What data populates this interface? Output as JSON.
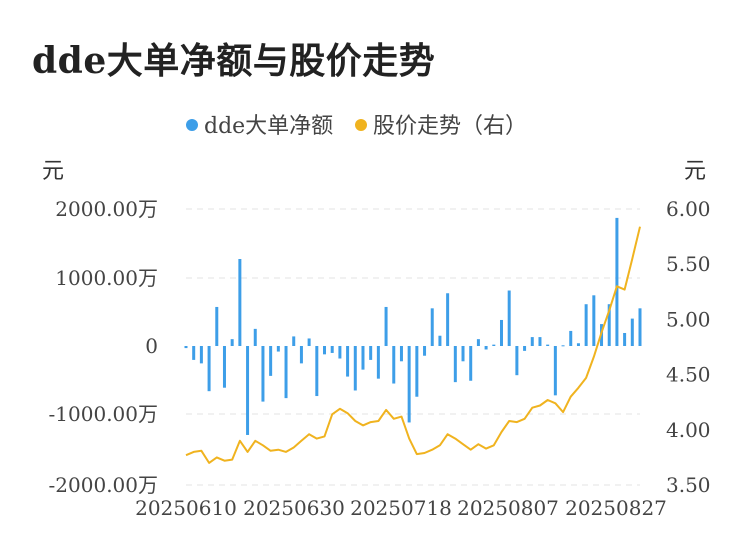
{
  "title": "dde大单净额与股价走势",
  "chart_data": {
    "type": "bar+line",
    "legend": [
      {
        "label": "dde大单净额",
        "color": "#3d9ee8"
      },
      {
        "label": "股价走势（右）",
        "color": "#f0b31f"
      }
    ],
    "left_unit": "元",
    "right_unit": "元",
    "left_ticks": [
      "2000.00万",
      "1000.00万",
      "0",
      "-1000.00万",
      "-2000.00万"
    ],
    "right_ticks": [
      "6.00",
      "5.50",
      "5.00",
      "4.50",
      "4.00",
      "3.50"
    ],
    "left_range": [
      -2000,
      2000
    ],
    "right_range": [
      3.5,
      6.0
    ],
    "x_ticks": [
      "20250610",
      "20250630",
      "20250718",
      "20250807",
      "20250827"
    ],
    "grid": true,
    "legend_position": "top-center",
    "series": [
      {
        "name": "dde大单净额",
        "type": "bar",
        "axis": "left",
        "values": [
          -30,
          -200,
          -250,
          -650,
          570,
          -600,
          100,
          1270,
          -1280,
          250,
          -800,
          -430,
          -80,
          -750,
          140,
          -250,
          110,
          -720,
          -120,
          -100,
          -180,
          -440,
          -640,
          -340,
          -200,
          -470,
          570,
          -540,
          -220,
          -1100,
          -730,
          -140,
          550,
          150,
          770,
          -520,
          -220,
          -500,
          100,
          -50,
          20,
          380,
          810,
          -420,
          -70,
          130,
          130,
          20,
          -710,
          10,
          220,
          40,
          610,
          740,
          320,
          610,
          1870,
          190,
          400,
          550
        ]
      },
      {
        "name": "股价走势（右）",
        "type": "line",
        "axis": "right",
        "values": [
          3.77,
          3.8,
          3.81,
          3.7,
          3.75,
          3.72,
          3.73,
          3.9,
          3.8,
          3.9,
          3.86,
          3.81,
          3.82,
          3.8,
          3.84,
          3.9,
          3.96,
          3.92,
          3.94,
          4.14,
          4.19,
          4.15,
          4.08,
          4.04,
          4.07,
          4.08,
          4.18,
          4.1,
          4.12,
          3.92,
          3.78,
          3.79,
          3.82,
          3.86,
          3.96,
          3.92,
          3.87,
          3.82,
          3.87,
          3.83,
          3.86,
          3.98,
          4.08,
          4.07,
          4.1,
          4.2,
          4.22,
          4.27,
          4.24,
          4.16,
          4.3,
          4.38,
          4.47,
          4.66,
          4.88,
          5.08,
          5.3,
          5.27,
          5.55,
          5.84
        ]
      }
    ]
  }
}
